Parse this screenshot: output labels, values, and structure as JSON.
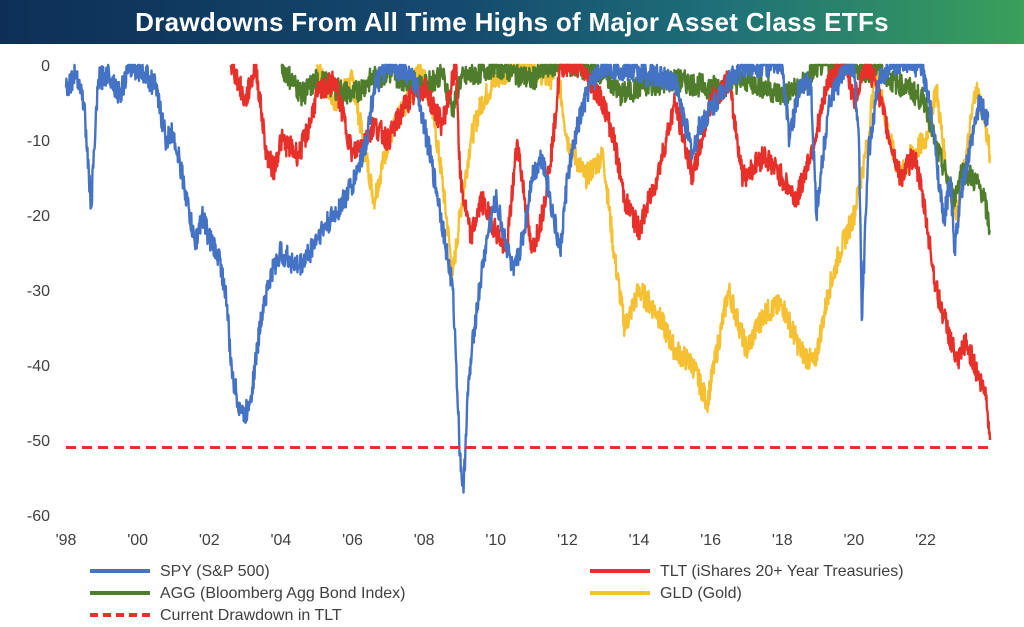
{
  "header": {
    "title": "Drawdowns From All Time Highs of Major Asset Class ETFs"
  },
  "colors": {
    "SPY": "#4472c4",
    "TLT": "#e8302a",
    "AGG": "#4f7d2c",
    "GLD": "#f5c132",
    "ref": "#e8302a"
  },
  "legend": {
    "spy": "SPY (S&P 500)",
    "tlt": "TLT (iShares 20+ Year Treasuries)",
    "agg": "AGG (Bloomberg Agg Bond Index)",
    "gld": "GLD (Gold)",
    "ref": "Current Drawdown in TLT"
  },
  "chart_data": {
    "type": "line",
    "title": "Drawdowns From All Time Highs of Major Asset Class ETFs",
    "xlabel": "",
    "ylabel": "",
    "xlim": [
      1998,
      2023.8
    ],
    "ylim": [
      -60,
      0
    ],
    "x_tick_values": [
      1998,
      2000,
      2002,
      2004,
      2006,
      2008,
      2010,
      2012,
      2014,
      2016,
      2018,
      2020,
      2022
    ],
    "x_tick_labels": [
      "'98",
      "'00",
      "'02",
      "'04",
      "'06",
      "'08",
      "'10",
      "'12",
      "'14",
      "'16",
      "'18",
      "'20",
      "'22"
    ],
    "y_ticks": [
      0,
      -10,
      -20,
      -30,
      -40,
      -50,
      -60
    ],
    "grid": false,
    "legend_position": "bottom",
    "series": [
      {
        "name": "SPY (S&P 500)",
        "key": "SPY",
        "x": [
          1998.0,
          1998.3,
          1998.5,
          1998.7,
          1998.9,
          1999.2,
          1999.5,
          1999.8,
          2000.2,
          2000.5,
          2000.8,
          2001.0,
          2001.3,
          2001.6,
          2001.8,
          2002.0,
          2002.3,
          2002.5,
          2002.6,
          2002.8,
          2003.0,
          2003.2,
          2003.5,
          2003.8,
          2004.0,
          2004.5,
          2004.8,
          2005.0,
          2005.5,
          2006.0,
          2006.4,
          2006.6,
          2007.0,
          2007.5,
          2007.8,
          2008.0,
          2008.2,
          2008.4,
          2008.6,
          2008.8,
          2008.9,
          2009.0,
          2009.1,
          2009.2,
          2009.4,
          2009.6,
          2009.8,
          2010.0,
          2010.3,
          2010.5,
          2010.8,
          2011.0,
          2011.3,
          2011.6,
          2011.8,
          2012.0,
          2012.3,
          2012.6,
          2013.0,
          2014.0,
          2015.0,
          2015.5,
          2015.7,
          2016.0,
          2016.5,
          2017.0,
          2018.0,
          2018.2,
          2018.5,
          2018.8,
          2018.95,
          2019.3,
          2019.8,
          2020.0,
          2020.15,
          2020.22,
          2020.4,
          2020.7,
          2021.0,
          2021.5,
          2021.9,
          2022.1,
          2022.3,
          2022.5,
          2022.7,
          2022.8,
          2023.0,
          2023.3,
          2023.5,
          2023.75
        ],
        "values": [
          -3,
          -1,
          -5,
          -19,
          -2,
          -1,
          -4,
          0,
          -1,
          -3,
          -10,
          -9,
          -16,
          -24,
          -20,
          -23,
          -26,
          -32,
          -40,
          -45,
          -47,
          -43,
          -32,
          -27,
          -25,
          -27,
          -25,
          -23,
          -20,
          -16,
          -10,
          -3,
          0,
          -1,
          -3,
          -8,
          -13,
          -18,
          -24,
          -30,
          -40,
          -52,
          -57,
          -45,
          -35,
          -28,
          -22,
          -18,
          -24,
          -28,
          -22,
          -15,
          -12,
          -20,
          -25,
          -15,
          -8,
          -3,
          0,
          -1,
          -2,
          -12,
          -8,
          -6,
          -2,
          0,
          0,
          -10,
          -2,
          -3,
          -20,
          -5,
          0,
          0,
          -12,
          -34,
          -12,
          -2,
          0,
          0,
          0,
          -5,
          -12,
          -21,
          -15,
          -25,
          -17,
          -10,
          -5,
          -7
        ]
      },
      {
        "name": "TLT (iShares 20+ Year Treasuries)",
        "key": "TLT",
        "x": [
          2002.6,
          2002.8,
          2003.0,
          2003.3,
          2003.6,
          2003.8,
          2004.0,
          2004.5,
          2004.8,
          2005.0,
          2005.5,
          2006.0,
          2006.3,
          2006.6,
          2007.0,
          2007.5,
          2008.0,
          2008.5,
          2008.9,
          2009.0,
          2009.3,
          2009.6,
          2010.0,
          2010.3,
          2010.6,
          2011.0,
          2011.3,
          2011.6,
          2011.8,
          2012.3,
          2012.6,
          2013.0,
          2013.3,
          2013.6,
          2014.0,
          2014.5,
          2015.0,
          2015.5,
          2016.0,
          2016.5,
          2016.9,
          2017.5,
          2018.0,
          2018.4,
          2018.9,
          2019.3,
          2019.8,
          2020.0,
          2020.3,
          2020.6,
          2021.0,
          2021.3,
          2021.7,
          2022.0,
          2022.3,
          2022.6,
          2022.9,
          2023.1,
          2023.3,
          2023.5,
          2023.7,
          2023.8
        ],
        "values": [
          0,
          -2,
          -5,
          0,
          -12,
          -14,
          -10,
          -12,
          -8,
          -4,
          -2,
          -12,
          -10,
          -8,
          -10,
          -5,
          -3,
          -8,
          0,
          -15,
          -23,
          -18,
          -22,
          -25,
          -10,
          -25,
          -20,
          -10,
          0,
          0,
          -2,
          -5,
          -10,
          -18,
          -22,
          -15,
          -5,
          -15,
          -5,
          -2,
          -15,
          -12,
          -15,
          -18,
          -10,
          -2,
          0,
          -5,
          0,
          -2,
          -10,
          -15,
          -12,
          -20,
          -30,
          -35,
          -40,
          -37,
          -39,
          -42,
          -44,
          -50
        ]
      },
      {
        "name": "AGG (Bloomberg Agg Bond Index)",
        "key": "AGG",
        "x": [
          2004.0,
          2004.3,
          2004.6,
          2005.0,
          2005.5,
          2006.0,
          2006.5,
          2007.0,
          2007.5,
          2008.0,
          2008.5,
          2008.8,
          2009.0,
          2009.5,
          2010.0,
          2010.5,
          2011.0,
          2011.5,
          2012.0,
          2013.0,
          2013.5,
          2014.0,
          2015.0,
          2016.0,
          2017.0,
          2018.0,
          2018.5,
          2019.0,
          2020.0,
          2020.3,
          2020.7,
          2021.0,
          2021.5,
          2022.0,
          2022.3,
          2022.6,
          2022.8,
          2023.0,
          2023.3,
          2023.6,
          2023.8
        ],
        "values": [
          0,
          -2,
          -4,
          -2,
          -3,
          -4,
          -2,
          -1,
          -2,
          -3,
          -1,
          -6,
          -2,
          -1,
          0,
          -1,
          -2,
          0,
          0,
          -1,
          -4,
          -3,
          -2,
          -3,
          -2,
          -4,
          -3,
          0,
          0,
          -1,
          0,
          -2,
          -3,
          -5,
          -11,
          -15,
          -18,
          -14,
          -15,
          -17,
          -22
        ]
      },
      {
        "name": "GLD (Gold)",
        "key": "GLD",
        "x": [
          2005.0,
          2005.5,
          2006.0,
          2006.3,
          2006.6,
          2007.0,
          2007.5,
          2007.9,
          2008.2,
          2008.5,
          2008.8,
          2009.0,
          2009.3,
          2009.6,
          2010.0,
          2010.5,
          2011.0,
          2011.5,
          2011.7,
          2012.0,
          2012.5,
          2013.0,
          2013.3,
          2013.6,
          2014.0,
          2014.5,
          2015.0,
          2015.5,
          2015.9,
          2016.5,
          2017.0,
          2017.5,
          2018.0,
          2018.5,
          2018.9,
          2019.3,
          2019.6,
          2020.0,
          2020.4,
          2020.6,
          2021.0,
          2021.3,
          2021.6,
          2022.0,
          2022.3,
          2022.6,
          2022.9,
          2023.2,
          2023.4,
          2023.6,
          2023.8
        ],
        "values": [
          0,
          -5,
          -2,
          -10,
          -18,
          -10,
          -5,
          0,
          -5,
          -15,
          -28,
          -20,
          -10,
          -5,
          -2,
          0,
          0,
          -2,
          0,
          -10,
          -15,
          -12,
          -25,
          -35,
          -30,
          -33,
          -38,
          -40,
          -45,
          -30,
          -38,
          -33,
          -32,
          -38,
          -40,
          -30,
          -25,
          -20,
          -10,
          0,
          -10,
          -15,
          -12,
          -10,
          -3,
          -15,
          -20,
          -10,
          -3,
          -6,
          -12
        ]
      }
    ],
    "reference_line": {
      "name": "Current Drawdown in TLT",
      "value": -51
    }
  }
}
